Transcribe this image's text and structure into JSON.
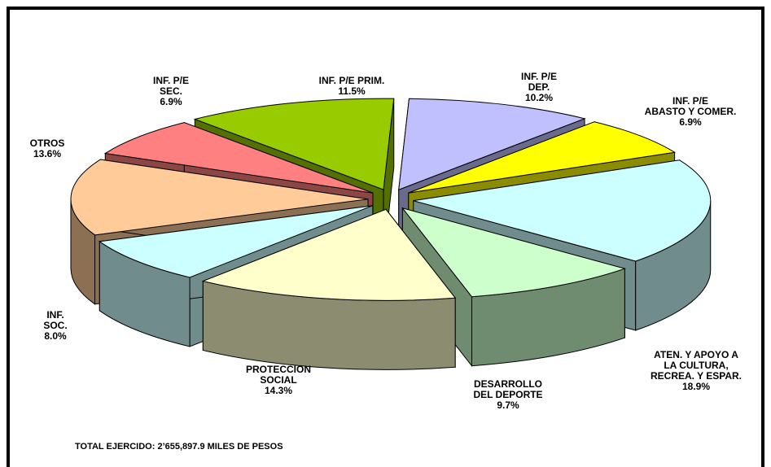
{
  "chart_data": {
    "type": "pie3d",
    "categories": [
      "INF. P/E\nDEP.",
      "INF. P/E\nABASTO Y COMER.",
      "ATEN. Y APOYO A\nLA CULTURA,\nRECREA. Y ESPAR.",
      "DESARROLLO\nDEL DEPORTE",
      "PROTECCION\nSOCIAL",
      "INF.\nSOC.",
      "OTROS",
      "INF. P/E\nSEC.",
      "INF. P/E PRIM."
    ],
    "values": [
      10.2,
      6.9,
      18.9,
      9.7,
      14.3,
      8.0,
      13.6,
      6.9,
      11.5
    ],
    "value_labels": [
      "10.2%",
      "6.9%",
      "18.9%",
      "9.7%",
      "14.3%",
      "8.0%",
      "13.6%",
      "6.9%",
      "11.5%"
    ],
    "colors": [
      "#c0c0ff",
      "#ffff00",
      "#ccffff",
      "#ccffcc",
      "#ffffcc",
      "#ccffff",
      "#ffcc99",
      "#ff8080",
      "#99cc00"
    ],
    "note": "TOTAL EJERCIDO: 2’655,897.9  MILES DE PESOS"
  }
}
